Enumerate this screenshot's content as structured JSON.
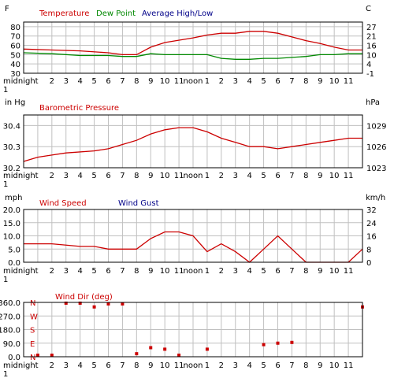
{
  "colors": {
    "red": "#cc0000",
    "green": "#008800",
    "blue": "#000088",
    "grid": "#c0c0c0"
  },
  "hours": [
    "midnight\n1",
    "2",
    "3",
    "4",
    "5",
    "6",
    "7",
    "8",
    "9",
    "10",
    "11",
    "noon",
    "1",
    "2",
    "3",
    "4",
    "5",
    "6",
    "7",
    "8",
    "9",
    "10",
    "11"
  ],
  "chart_data": [
    {
      "type": "line",
      "unit_left": "F",
      "unit_right": "C",
      "y_ticks_left": [
        "30",
        "40",
        "50",
        "60",
        "70",
        "80"
      ],
      "y_ticks_right": [
        "-1",
        "4",
        "10",
        "16",
        "21",
        "27"
      ],
      "ylim": [
        30,
        85
      ],
      "grid": true,
      "legend": [
        "Temperature",
        "Dew Point",
        "Average High/Low"
      ],
      "series": [
        {
          "name": "Temperature",
          "color": "#cc0000",
          "points": [
            [
              0,
              56
            ],
            [
              2,
              55
            ],
            [
              4,
              54
            ],
            [
              6,
              52
            ],
            [
              7,
              50
            ],
            [
              8,
              50
            ],
            [
              9,
              58
            ],
            [
              10,
              63
            ],
            [
              12,
              68
            ],
            [
              13,
              71
            ],
            [
              14,
              73
            ],
            [
              15,
              73
            ],
            [
              16,
              75
            ],
            [
              17,
              75
            ],
            [
              18,
              73
            ],
            [
              19,
              69
            ],
            [
              20,
              65
            ],
            [
              21,
              62
            ],
            [
              22,
              58
            ],
            [
              23,
              55
            ],
            [
              24,
              55
            ]
          ]
        },
        {
          "name": "Dew Point",
          "color": "#008800",
          "points": [
            [
              0,
              52
            ],
            [
              2,
              51
            ],
            [
              4,
              49
            ],
            [
              6,
              49
            ],
            [
              7,
              48
            ],
            [
              8,
              48
            ],
            [
              9,
              51
            ],
            [
              10,
              50
            ],
            [
              13,
              50
            ],
            [
              14,
              46
            ],
            [
              15,
              45
            ],
            [
              16,
              45
            ],
            [
              17,
              46
            ],
            [
              18,
              46
            ],
            [
              19,
              47
            ],
            [
              20,
              48
            ],
            [
              21,
              50
            ],
            [
              22,
              50
            ],
            [
              23,
              51
            ],
            [
              24,
              51
            ]
          ]
        }
      ]
    },
    {
      "type": "line",
      "title": "Barometric Pressure",
      "unit_left": "in Hg",
      "unit_right": "hPa",
      "y_ticks_left": [
        "30.2",
        "30.3",
        "30.4"
      ],
      "y_ticks_right": [
        "1023",
        "1026",
        "1029"
      ],
      "ylim": [
        30.2,
        30.45
      ],
      "grid": true,
      "series": [
        {
          "name": "Barometric Pressure",
          "color": "#cc0000",
          "points": [
            [
              0,
              30.23
            ],
            [
              1,
              30.25
            ],
            [
              2,
              30.26
            ],
            [
              3,
              30.27
            ],
            [
              5,
              30.28
            ],
            [
              6,
              30.29
            ],
            [
              7,
              30.31
            ],
            [
              8,
              30.33
            ],
            [
              9,
              30.36
            ],
            [
              10,
              30.38
            ],
            [
              11,
              30.39
            ],
            [
              12,
              30.39
            ],
            [
              13,
              30.37
            ],
            [
              14,
              30.34
            ],
            [
              15,
              30.32
            ],
            [
              16,
              30.3
            ],
            [
              17,
              30.3
            ],
            [
              18,
              30.29
            ],
            [
              19,
              30.3
            ],
            [
              20,
              30.31
            ],
            [
              21,
              30.32
            ],
            [
              22,
              30.33
            ],
            [
              23,
              30.34
            ],
            [
              24,
              30.34
            ]
          ]
        }
      ]
    },
    {
      "type": "line",
      "unit_left": "mph",
      "unit_right": "km/h",
      "y_ticks_left": [
        "0.0",
        "5.0",
        "10.0",
        "15.0",
        "20.0"
      ],
      "y_ticks_right": [
        "0",
        "8",
        "16",
        "24",
        "32"
      ],
      "ylim": [
        0,
        20
      ],
      "grid": true,
      "legend": [
        "Wind Speed",
        "Wind Gust"
      ],
      "series": [
        {
          "name": "Wind Speed",
          "color": "#cc0000",
          "points": [
            [
              0,
              7
            ],
            [
              2,
              7
            ],
            [
              4,
              6
            ],
            [
              5,
              6
            ],
            [
              6,
              5
            ],
            [
              8,
              5
            ],
            [
              9,
              9
            ],
            [
              10,
              11.5
            ],
            [
              11,
              11.5
            ],
            [
              12,
              10
            ],
            [
              13,
              4
            ],
            [
              14,
              7
            ],
            [
              15,
              4
            ],
            [
              16,
              0
            ],
            [
              17,
              5
            ],
            [
              18,
              10
            ],
            [
              19,
              5
            ],
            [
              20,
              0
            ],
            [
              23,
              0
            ],
            [
              24,
              5
            ]
          ]
        }
      ]
    },
    {
      "type": "scatter",
      "title": "Wind Dir (deg)",
      "y_ticks_left": [
        "0.0",
        "90.0",
        "180.0",
        "270.0",
        "360.0"
      ],
      "compass_labels": [
        "N",
        "E",
        "S",
        "W",
        "N"
      ],
      "ylim": [
        0,
        360
      ],
      "grid": true,
      "series": [
        {
          "name": "Wind Dir (deg)",
          "color": "#cc0000",
          "points": [
            [
              1,
              10
            ],
            [
              2,
              10
            ],
            [
              3,
              355
            ],
            [
              4,
              355
            ],
            [
              5,
              330
            ],
            [
              6,
              350
            ],
            [
              7,
              350
            ],
            [
              8,
              20
            ],
            [
              9,
              60
            ],
            [
              10,
              50
            ],
            [
              11,
              10
            ],
            [
              13,
              50
            ],
            [
              17,
              80
            ],
            [
              18,
              90
            ],
            [
              19,
              95
            ],
            [
              24,
              330
            ]
          ]
        }
      ]
    }
  ]
}
